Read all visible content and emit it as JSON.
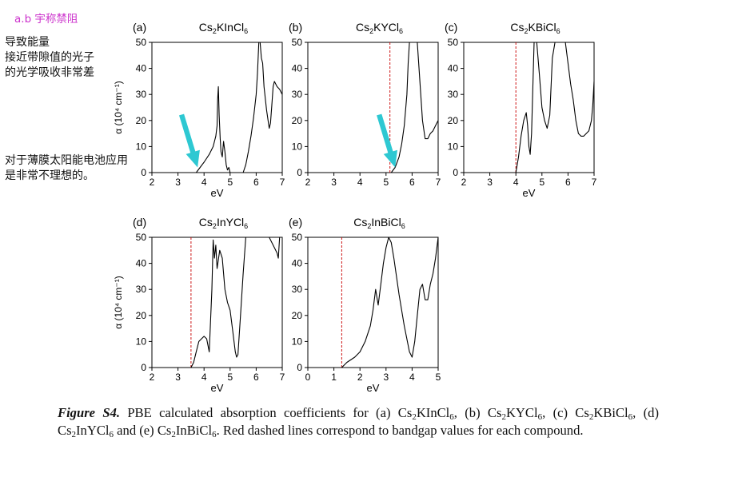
{
  "annotation": {
    "tag": "a.b  宇称禁阻",
    "note1_lines": [
      "导致能量",
      "接近带隙值的光子",
      "的光学吸收非常差"
    ],
    "note2_lines": [
      "对于薄膜太阳能电池应用",
      "是非常不理想的。"
    ]
  },
  "caption": {
    "label": "Figure S4.",
    "segments": [
      {
        "t": " PBE calculated absorption coefficients for (a) Cs"
      },
      {
        "s": "2"
      },
      {
        "t": "KInCl"
      },
      {
        "s": "6"
      },
      {
        "t": ", (b) Cs"
      },
      {
        "s": "2"
      },
      {
        "t": "KYCl"
      },
      {
        "s": "6"
      },
      {
        "t": ", (c) Cs"
      },
      {
        "s": "2"
      },
      {
        "t": "KBiCl"
      },
      {
        "s": "6"
      },
      {
        "t": ", (d) Cs"
      },
      {
        "s": "2"
      },
      {
        "t": "InYCl"
      },
      {
        "s": "6"
      },
      {
        "t": " and (e) Cs"
      },
      {
        "s": "2"
      },
      {
        "t": "InBiCl"
      },
      {
        "s": "6"
      },
      {
        "t": ". Red dashed lines correspond to bandgap values for each compound."
      }
    ]
  },
  "colors": {
    "curve": "#000000",
    "bandgap": "#cc1111",
    "arrow": "#2ec8d2",
    "tag": "#cc33cc"
  },
  "chart_data": [
    {
      "panel": "(a)",
      "type": "line",
      "title_parts": [
        [
          "Cs",
          ""
        ],
        [
          "2",
          "sub"
        ],
        [
          "KInCl",
          ""
        ],
        [
          "6",
          "sub"
        ]
      ],
      "xlabel": "eV",
      "ylabel": "α (10⁴ cm⁻¹)",
      "xlim": [
        2,
        7
      ],
      "ylim": [
        0,
        50
      ],
      "xticks": [
        2,
        3,
        4,
        5,
        6,
        7
      ],
      "yticks": [
        0,
        10,
        20,
        30,
        40,
        50
      ],
      "show_ylabel": true,
      "show_yticklabels": true,
      "bandgap": null,
      "arrow_to": [
        3.75,
        2
      ],
      "x": [
        3.7,
        3.85,
        4.0,
        4.2,
        4.35,
        4.45,
        4.5,
        4.52,
        4.55,
        4.58,
        4.62,
        4.65,
        4.7,
        4.75,
        4.8,
        4.85,
        4.9,
        4.95,
        5.0,
        5.3,
        5.5,
        5.6,
        5.7,
        5.8,
        5.9,
        6.0,
        6.05,
        6.1,
        6.15,
        6.2,
        6.25,
        6.3,
        6.4,
        6.5,
        6.55,
        6.6,
        6.65,
        6.7,
        6.8,
        6.9,
        7.0
      ],
      "y": [
        0,
        2,
        4,
        7,
        10,
        14,
        18,
        28,
        33,
        22,
        13,
        8,
        6,
        12,
        8,
        3,
        1,
        2,
        0,
        0,
        0,
        3,
        8,
        14,
        21,
        30,
        38,
        50,
        50,
        44,
        42,
        33,
        24,
        17,
        19,
        26,
        33,
        35,
        33,
        32,
        30
      ]
    },
    {
      "panel": "(b)",
      "type": "line",
      "title_parts": [
        [
          "Cs",
          ""
        ],
        [
          "2",
          "sub"
        ],
        [
          "KYCl",
          ""
        ],
        [
          "6",
          "sub"
        ]
      ],
      "xlabel": "",
      "ylabel": "",
      "xlim": [
        2,
        7
      ],
      "ylim": [
        0,
        50
      ],
      "xticks": [
        2,
        3,
        4,
        5,
        6,
        7
      ],
      "yticks": [
        0,
        10,
        20,
        30,
        40,
        50
      ],
      "show_ylabel": false,
      "show_yticklabels": true,
      "bandgap": 5.15,
      "arrow_to": [
        5.35,
        2
      ],
      "x": [
        5.2,
        5.35,
        5.5,
        5.6,
        5.7,
        5.8,
        5.85,
        5.9,
        5.95,
        6.0,
        6.2,
        6.4,
        6.5,
        6.6,
        6.7,
        6.8,
        6.9,
        7.0
      ],
      "y": [
        0,
        2,
        6,
        11,
        18,
        30,
        42,
        50,
        50,
        50,
        50,
        20,
        13,
        13,
        15,
        16,
        18,
        20
      ]
    },
    {
      "panel": "(c)",
      "type": "line",
      "title_parts": [
        [
          "Cs",
          ""
        ],
        [
          "2",
          "sub"
        ],
        [
          "KBiCl",
          ""
        ],
        [
          "6",
          "sub"
        ]
      ],
      "xlabel": "eV",
      "ylabel": "",
      "xlim": [
        2,
        7
      ],
      "ylim": [
        0,
        50
      ],
      "xticks": [
        2,
        3,
        4,
        5,
        6,
        7
      ],
      "yticks": [
        0,
        10,
        20,
        30,
        40,
        50
      ],
      "show_ylabel": false,
      "show_yticklabels": true,
      "bandgap": 4.0,
      "arrow_to": null,
      "x": [
        4.0,
        4.1,
        4.2,
        4.3,
        4.4,
        4.45,
        4.5,
        4.55,
        4.6,
        4.7,
        4.8,
        4.9,
        5.0,
        5.1,
        5.2,
        5.3,
        5.4,
        5.5,
        5.7,
        5.9,
        6.0,
        6.1,
        6.2,
        6.3,
        6.4,
        6.5,
        6.6,
        6.8,
        6.9,
        6.95,
        7.0
      ],
      "y": [
        0,
        6,
        14,
        20,
        23,
        18,
        10,
        7,
        15,
        50,
        50,
        38,
        25,
        20,
        17,
        22,
        44,
        50,
        50,
        50,
        42,
        34,
        28,
        20,
        15,
        14,
        14,
        16,
        20,
        26,
        35
      ]
    },
    {
      "panel": "(d)",
      "type": "line",
      "title_parts": [
        [
          "Cs",
          ""
        ],
        [
          "2",
          "sub"
        ],
        [
          "InYCl",
          ""
        ],
        [
          "6",
          "sub"
        ]
      ],
      "xlabel": "eV",
      "ylabel": "α (10⁴ cm⁻¹)",
      "xlim": [
        2,
        7
      ],
      "ylim": [
        0,
        50
      ],
      "xticks": [
        2,
        3,
        4,
        5,
        6,
        7
      ],
      "yticks": [
        0,
        10,
        20,
        30,
        40,
        50
      ],
      "show_ylabel": true,
      "show_yticklabels": true,
      "bandgap": 3.5,
      "arrow_to": null,
      "x": [
        3.5,
        3.6,
        3.7,
        3.8,
        3.9,
        4.0,
        4.1,
        4.2,
        4.3,
        4.35,
        4.4,
        4.45,
        4.5,
        4.6,
        4.7,
        4.8,
        4.9,
        5.0,
        5.1,
        5.2,
        5.25,
        5.3,
        5.4,
        5.5,
        5.6,
        5.7,
        5.8,
        6.0,
        6.2,
        6.5,
        6.7,
        6.8,
        6.85,
        6.9,
        7.0
      ],
      "y": [
        0,
        2,
        6,
        10,
        11,
        12,
        11,
        6,
        30,
        49,
        42,
        47,
        38,
        45,
        42,
        30,
        25,
        22,
        14,
        6,
        4,
        5,
        20,
        36,
        50,
        50,
        50,
        50,
        50,
        50,
        46,
        44,
        42,
        50,
        50
      ]
    },
    {
      "panel": "(e)",
      "type": "line",
      "title_parts": [
        [
          "Cs",
          ""
        ],
        [
          "2",
          "sub"
        ],
        [
          "InBiCl",
          ""
        ],
        [
          "6",
          "sub"
        ]
      ],
      "xlabel": "eV",
      "ylabel": "",
      "xlim": [
        0,
        5
      ],
      "ylim": [
        0,
        50
      ],
      "xticks": [
        0,
        1,
        2,
        3,
        4,
        5
      ],
      "yticks": [
        0,
        10,
        20,
        30,
        40,
        50
      ],
      "show_ylabel": false,
      "show_yticklabels": true,
      "bandgap": 1.3,
      "arrow_to": null,
      "x": [
        1.3,
        1.5,
        1.8,
        2.0,
        2.2,
        2.4,
        2.5,
        2.6,
        2.7,
        2.8,
        2.9,
        3.0,
        3.1,
        3.2,
        3.3,
        3.5,
        3.7,
        3.9,
        4.0,
        4.1,
        4.2,
        4.3,
        4.4,
        4.5,
        4.6,
        4.7,
        4.8,
        4.9,
        5.0
      ],
      "y": [
        0,
        2,
        4,
        6,
        10,
        16,
        22,
        30,
        24,
        32,
        40,
        46,
        50,
        48,
        42,
        28,
        16,
        6,
        4,
        10,
        20,
        30,
        32,
        26,
        26,
        32,
        36,
        42,
        50
      ]
    }
  ]
}
